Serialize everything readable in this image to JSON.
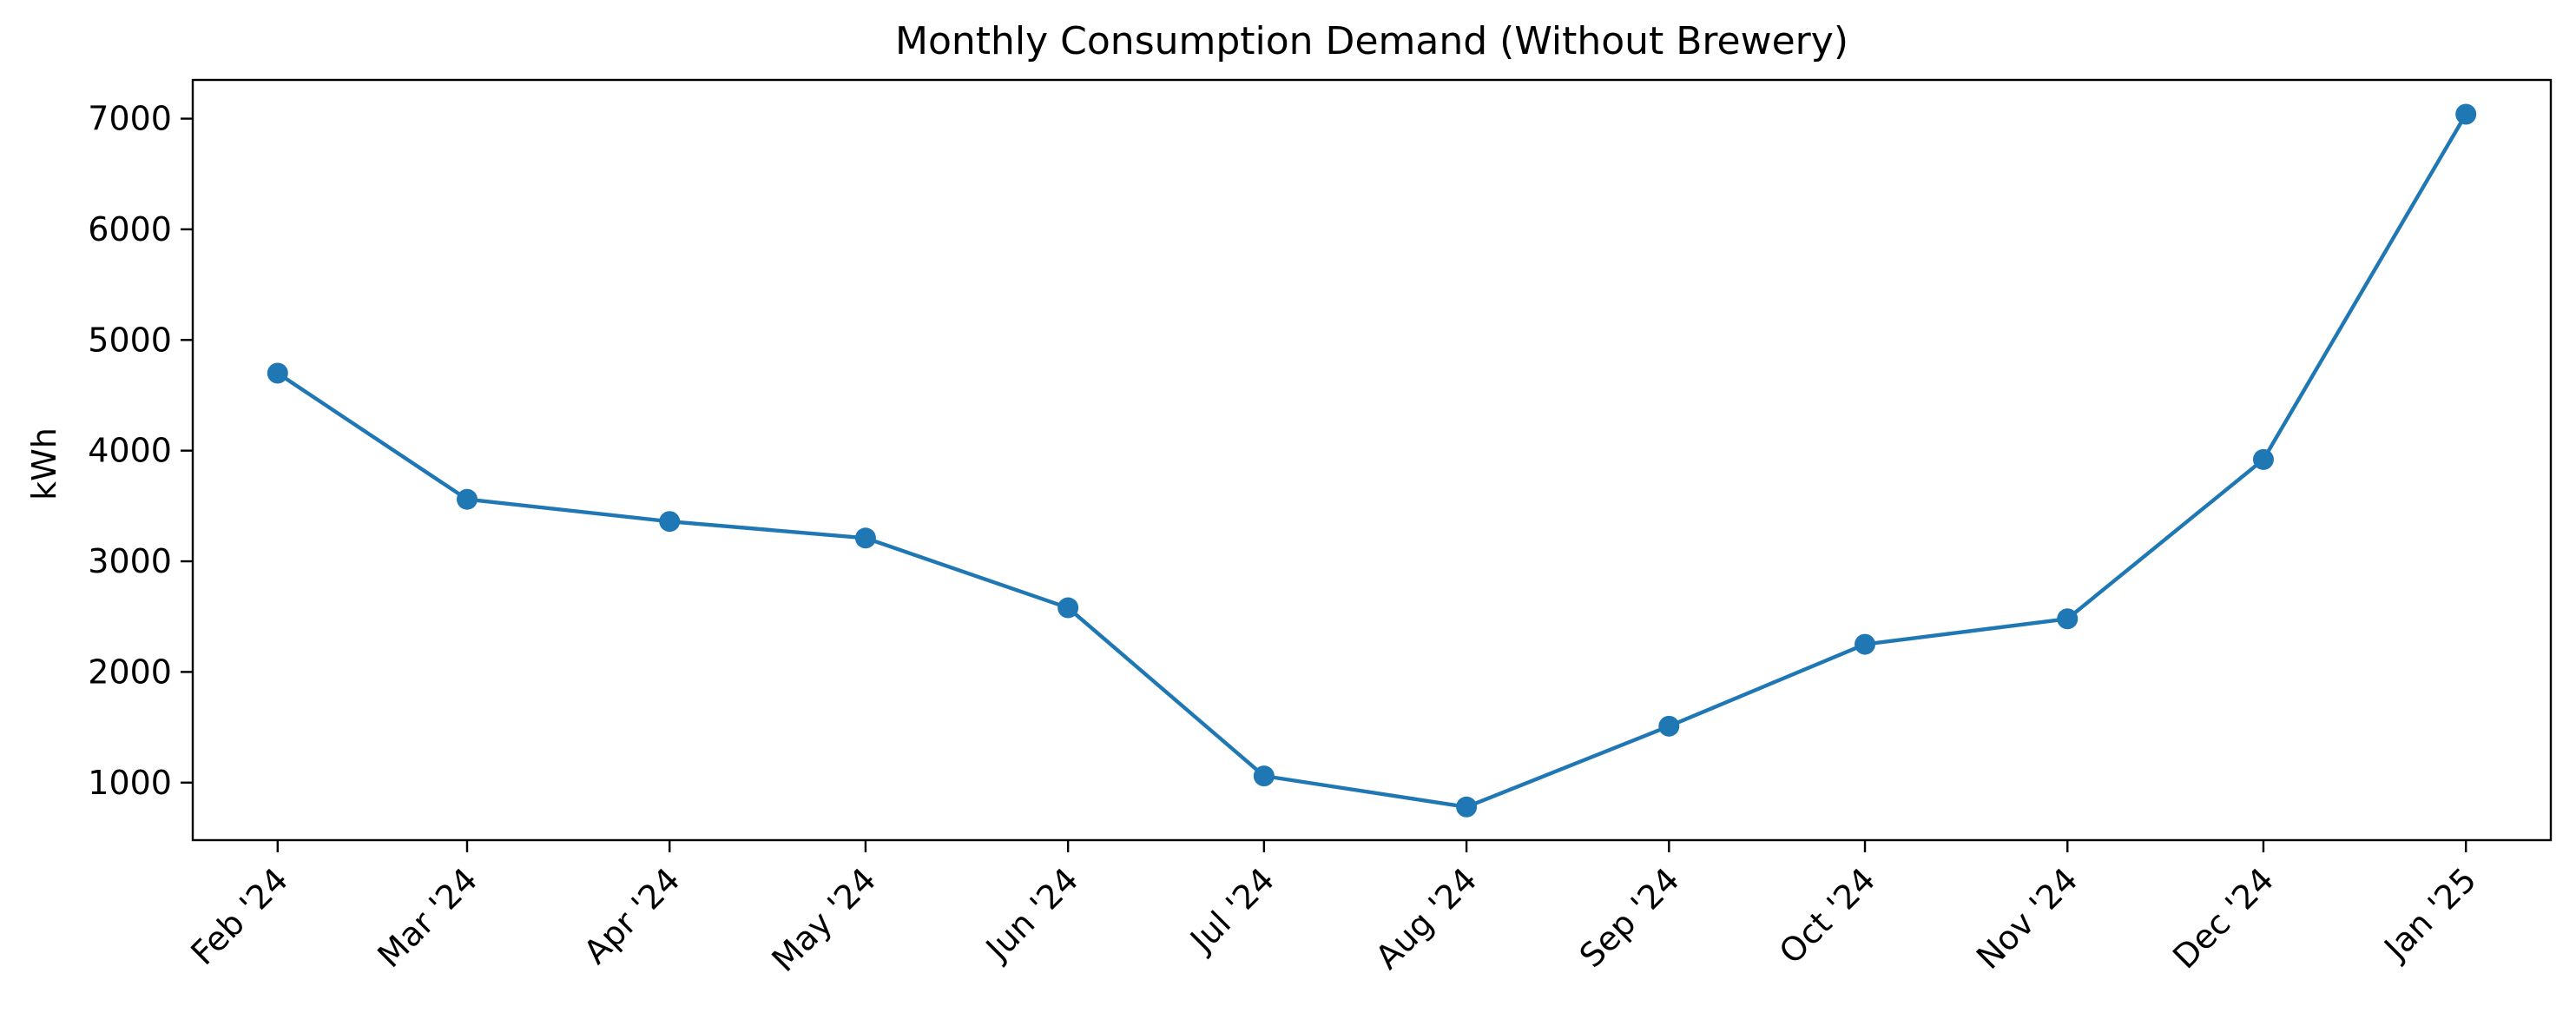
{
  "chart_data": {
    "type": "line",
    "title": "Monthly Consumption Demand (Without Brewery)",
    "xlabel": "",
    "ylabel": "kWh",
    "x": [
      "Feb '24",
      "Mar '24",
      "Apr '24",
      "May '24",
      "Jun '24",
      "Jul '24",
      "Aug '24",
      "Sep '24",
      "Oct '24",
      "Nov '24",
      "Dec '24",
      "Jan '25"
    ],
    "x_dates": [
      "2024-02-01",
      "2024-03-01",
      "2024-04-01",
      "2024-05-01",
      "2024-06-01",
      "2024-07-01",
      "2024-08-01",
      "2024-09-01",
      "2024-10-01",
      "2024-11-01",
      "2024-12-01",
      "2025-01-01"
    ],
    "series": [
      {
        "values": [
          4700,
          3560,
          3360,
          3210,
          2580,
          1060,
          780,
          1510,
          2250,
          2480,
          3920,
          7040
        ],
        "color": "#1f77b4",
        "marker": "circle"
      }
    ],
    "yticks": [
      1000,
      2000,
      3000,
      4000,
      5000,
      6000,
      7000
    ],
    "ylim": [
      480,
      7350
    ],
    "grid": false,
    "legend": "none"
  }
}
